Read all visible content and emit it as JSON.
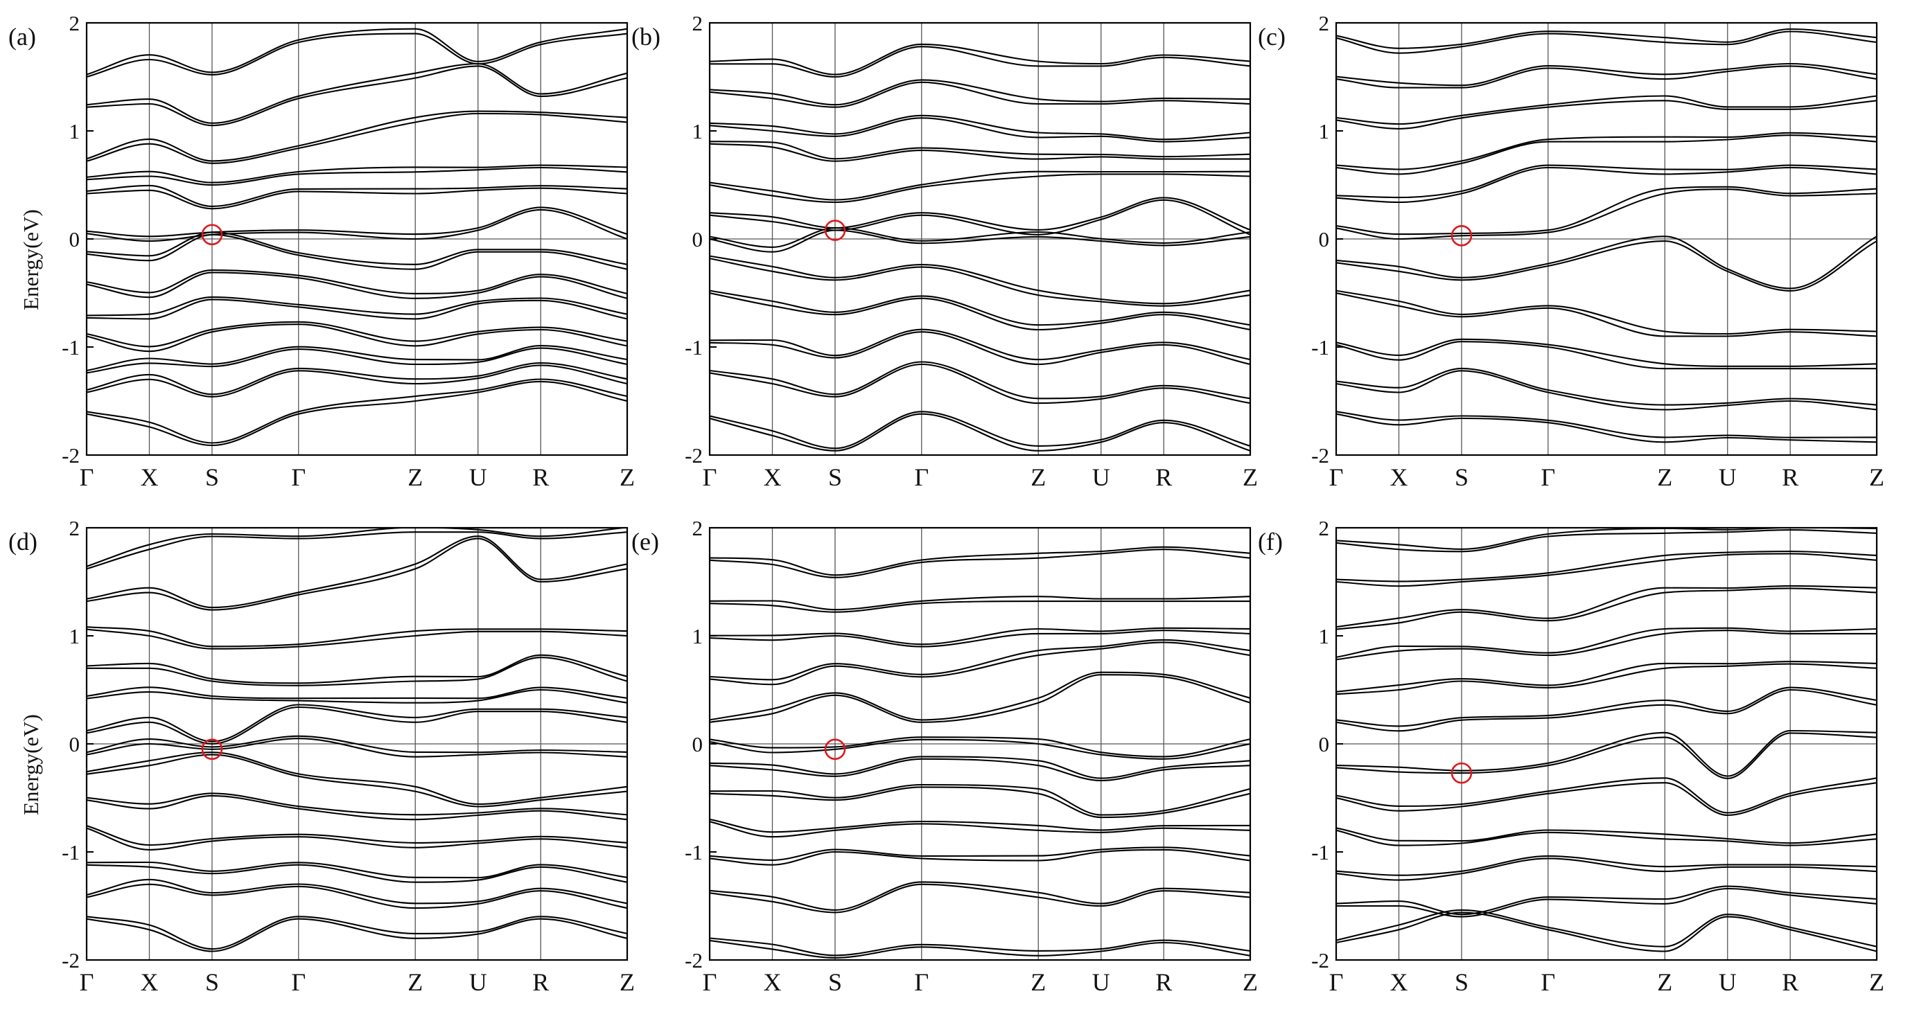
{
  "figure": {
    "line_color": "#000000",
    "marker_color": "#e0161b"
  },
  "chart_data": [
    {
      "type": "line",
      "panel_label": "(a)",
      "ylabel": "Energy(eV)",
      "ylim": [
        -2,
        2
      ],
      "y_ticks": [
        "-2",
        "-1",
        "0",
        "1",
        "2"
      ],
      "k_path": [
        "Γ",
        "X",
        "S",
        "Γ",
        "Z",
        "U",
        "R",
        "Z"
      ],
      "k_positions": [
        0,
        0.116,
        0.232,
        0.392,
        0.608,
        0.724,
        0.84,
        1.0
      ],
      "fermi_level": 0,
      "marked_point": {
        "k": "S",
        "x": 0.232,
        "energy": 0.04
      },
      "band_energies_at_k": [
        [
          -1.62,
          -1.74,
          -1.91,
          -1.62,
          -1.5,
          -1.42,
          -1.32,
          -1.5
        ],
        [
          -1.42,
          -1.3,
          -1.46,
          -1.22,
          -1.34,
          -1.29,
          -1.17,
          -1.34
        ],
        [
          -1.24,
          -1.15,
          -1.18,
          -1.02,
          -1.16,
          -1.14,
          -1.01,
          -1.16
        ],
        [
          -0.9,
          -1.04,
          -0.86,
          -0.79,
          -0.99,
          -0.88,
          -0.84,
          -0.99
        ],
        [
          -0.73,
          -0.74,
          -0.56,
          -0.63,
          -0.74,
          -0.6,
          -0.57,
          -0.74
        ],
        [
          -0.42,
          -0.54,
          -0.31,
          -0.36,
          -0.55,
          -0.5,
          -0.35,
          -0.55
        ],
        [
          -0.14,
          -0.2,
          0.04,
          -0.15,
          -0.28,
          -0.12,
          -0.12,
          -0.28
        ],
        [
          0.05,
          -0.02,
          0.04,
          0.06,
          0.0,
          0.08,
          0.27,
          0.0
        ],
        [
          0.42,
          0.45,
          0.28,
          0.44,
          0.42,
          0.45,
          0.47,
          0.42
        ],
        [
          0.55,
          0.58,
          0.5,
          0.6,
          0.62,
          0.64,
          0.66,
          0.62
        ],
        [
          0.72,
          0.88,
          0.7,
          0.84,
          1.08,
          1.16,
          1.15,
          1.08
        ],
        [
          1.22,
          1.25,
          1.05,
          1.3,
          1.49,
          1.6,
          1.32,
          1.49
        ],
        [
          1.5,
          1.66,
          1.52,
          1.82,
          1.9,
          1.62,
          1.8,
          1.9
        ]
      ]
    },
    {
      "type": "line",
      "panel_label": "(b)",
      "ylabel": "",
      "ylim": [
        -2,
        2
      ],
      "y_ticks": [
        "-2",
        "-1",
        "0",
        "1",
        "2"
      ],
      "k_path": [
        "Γ",
        "X",
        "S",
        "Γ",
        "Z",
        "U",
        "R",
        "Z"
      ],
      "k_positions": [
        0,
        0.116,
        0.232,
        0.392,
        0.608,
        0.724,
        0.84,
        1.0
      ],
      "fermi_level": 0,
      "marked_point": {
        "k": "S",
        "x": 0.232,
        "energy": 0.08
      },
      "band_energies_at_k": [
        [
          -1.66,
          -1.82,
          -1.96,
          -1.62,
          -1.96,
          -1.88,
          -1.7,
          -1.96
        ],
        [
          -1.24,
          -1.34,
          -1.46,
          -1.16,
          -1.52,
          -1.48,
          -1.38,
          -1.52
        ],
        [
          -0.96,
          -0.98,
          -1.1,
          -0.86,
          -1.16,
          -1.05,
          -0.98,
          -1.16
        ],
        [
          -0.5,
          -0.62,
          -0.7,
          -0.55,
          -0.84,
          -0.78,
          -0.7,
          -0.84
        ],
        [
          -0.18,
          -0.3,
          -0.38,
          -0.26,
          -0.52,
          -0.58,
          -0.62,
          -0.52
        ],
        [
          0.0,
          -0.12,
          0.08,
          -0.04,
          0.02,
          -0.02,
          -0.06,
          0.02
        ],
        [
          0.22,
          0.16,
          0.08,
          0.22,
          0.04,
          0.18,
          0.36,
          0.04
        ],
        [
          0.5,
          0.4,
          0.34,
          0.48,
          0.58,
          0.6,
          0.6,
          0.58
        ],
        [
          0.88,
          0.85,
          0.72,
          0.82,
          0.74,
          0.76,
          0.74,
          0.74
        ],
        [
          1.05,
          1.0,
          0.95,
          1.12,
          0.94,
          0.95,
          0.9,
          0.94
        ],
        [
          1.36,
          1.3,
          1.22,
          1.45,
          1.25,
          1.25,
          1.28,
          1.25
        ],
        [
          1.62,
          1.62,
          1.5,
          1.78,
          1.6,
          1.6,
          1.68,
          1.6
        ]
      ]
    },
    {
      "type": "line",
      "panel_label": "(c)",
      "ylabel": "",
      "ylim": [
        -2,
        2
      ],
      "y_ticks": [
        "-2",
        "-1",
        "0",
        "1",
        "2"
      ],
      "k_path": [
        "Γ",
        "X",
        "S",
        "Γ",
        "Z",
        "U",
        "R",
        "Z"
      ],
      "k_positions": [
        0,
        0.116,
        0.232,
        0.392,
        0.608,
        0.724,
        0.84,
        1.0
      ],
      "fermi_level": 0,
      "marked_point": {
        "k": "S",
        "x": 0.232,
        "energy": 0.03
      },
      "band_energies_at_k": [
        [
          -1.62,
          -1.72,
          -1.66,
          -1.7,
          -1.88,
          -1.84,
          -1.86,
          -1.88
        ],
        [
          -1.34,
          -1.42,
          -1.22,
          -1.42,
          -1.58,
          -1.54,
          -1.5,
          -1.58
        ],
        [
          -0.98,
          -1.12,
          -0.95,
          -1.0,
          -1.2,
          -1.2,
          -1.2,
          -1.2
        ],
        [
          -0.5,
          -0.62,
          -0.72,
          -0.64,
          -0.9,
          -0.9,
          -0.86,
          -0.9
        ],
        [
          -0.22,
          -0.3,
          -0.38,
          -0.25,
          -0.02,
          -0.3,
          -0.48,
          -0.02
        ],
        [
          0.1,
          0.0,
          0.03,
          0.06,
          0.42,
          0.46,
          0.4,
          0.42
        ],
        [
          0.38,
          0.34,
          0.42,
          0.66,
          0.6,
          0.62,
          0.66,
          0.6
        ],
        [
          0.66,
          0.6,
          0.7,
          0.9,
          0.9,
          0.92,
          0.96,
          0.9
        ],
        [
          1.1,
          1.02,
          1.12,
          1.22,
          1.28,
          1.2,
          1.2,
          1.28
        ],
        [
          1.48,
          1.4,
          1.4,
          1.58,
          1.48,
          1.55,
          1.6,
          1.48
        ],
        [
          1.86,
          1.72,
          1.78,
          1.9,
          1.82,
          1.8,
          1.92,
          1.82
        ]
      ]
    },
    {
      "type": "line",
      "panel_label": "(d)",
      "ylabel": "Energy(eV)",
      "ylim": [
        -2,
        2
      ],
      "y_ticks": [
        "-2",
        "-1",
        "0",
        "1",
        "2"
      ],
      "k_path": [
        "Γ",
        "X",
        "S",
        "Γ",
        "Z",
        "U",
        "R",
        "Z"
      ],
      "k_positions": [
        0,
        0.116,
        0.232,
        0.392,
        0.608,
        0.724,
        0.84,
        1.0
      ],
      "fermi_level": 0,
      "marked_point": {
        "k": "S",
        "x": 0.232,
        "energy": -0.05
      },
      "band_energies_at_k": [
        [
          -1.62,
          -1.72,
          -1.92,
          -1.62,
          -1.8,
          -1.76,
          -1.62,
          -1.8
        ],
        [
          -1.42,
          -1.3,
          -1.4,
          -1.32,
          -1.52,
          -1.48,
          -1.36,
          -1.52
        ],
        [
          -1.12,
          -1.14,
          -1.2,
          -1.12,
          -1.28,
          -1.26,
          -1.14,
          -1.28
        ],
        [
          -0.78,
          -0.98,
          -0.9,
          -0.86,
          -0.96,
          -0.92,
          -0.88,
          -0.96
        ],
        [
          -0.52,
          -0.6,
          -0.48,
          -0.6,
          -0.7,
          -0.66,
          -0.62,
          -0.7
        ],
        [
          -0.28,
          -0.2,
          -0.1,
          -0.3,
          -0.44,
          -0.58,
          -0.52,
          -0.44
        ],
        [
          -0.1,
          0.0,
          -0.05,
          0.05,
          -0.12,
          -0.1,
          -0.08,
          -0.12
        ],
        [
          0.1,
          0.2,
          0.0,
          0.34,
          0.2,
          0.3,
          0.3,
          0.2
        ],
        [
          0.42,
          0.48,
          0.42,
          0.4,
          0.38,
          0.4,
          0.5,
          0.38
        ],
        [
          0.7,
          0.7,
          0.58,
          0.54,
          0.58,
          0.6,
          0.8,
          0.58
        ],
        [
          1.06,
          1.0,
          0.88,
          0.9,
          1.0,
          1.04,
          1.04,
          1.0
        ],
        [
          1.32,
          1.4,
          1.24,
          1.38,
          1.62,
          1.9,
          1.5,
          1.62
        ],
        [
          1.62,
          1.8,
          1.92,
          1.9,
          1.96,
          1.96,
          1.9,
          1.96
        ]
      ]
    },
    {
      "type": "line",
      "panel_label": "(e)",
      "ylabel": "",
      "ylim": [
        -2,
        2
      ],
      "y_ticks": [
        "-2",
        "-1",
        "0",
        "1",
        "2"
      ],
      "k_path": [
        "Γ",
        "X",
        "S",
        "Γ",
        "Z",
        "U",
        "R",
        "Z"
      ],
      "k_positions": [
        0,
        0.116,
        0.232,
        0.392,
        0.608,
        0.724,
        0.84,
        1.0
      ],
      "fermi_level": 0,
      "marked_point": {
        "k": "S",
        "x": 0.232,
        "energy": -0.05
      },
      "band_energies_at_k": [
        [
          -1.82,
          -1.9,
          -1.98,
          -1.88,
          -1.96,
          -1.92,
          -1.84,
          -1.96
        ],
        [
          -1.38,
          -1.46,
          -1.56,
          -1.3,
          -1.42,
          -1.5,
          -1.36,
          -1.42
        ],
        [
          -1.06,
          -1.12,
          -1.0,
          -1.06,
          -1.08,
          -1.0,
          -0.98,
          -1.08
        ],
        [
          -0.72,
          -0.86,
          -0.8,
          -0.74,
          -0.8,
          -0.82,
          -0.78,
          -0.8
        ],
        [
          -0.46,
          -0.48,
          -0.52,
          -0.4,
          -0.46,
          -0.68,
          -0.64,
          -0.46
        ],
        [
          -0.2,
          -0.24,
          -0.3,
          -0.14,
          -0.2,
          -0.34,
          -0.24,
          -0.2
        ],
        [
          0.02,
          -0.08,
          -0.05,
          0.04,
          0.0,
          -0.1,
          -0.14,
          0.0
        ],
        [
          0.2,
          0.28,
          0.45,
          0.2,
          0.38,
          0.64,
          0.62,
          0.38
        ],
        [
          0.6,
          0.55,
          0.72,
          0.62,
          0.82,
          0.88,
          0.94,
          0.82
        ],
        [
          0.98,
          0.96,
          1.0,
          0.9,
          1.02,
          1.02,
          1.05,
          1.02
        ],
        [
          1.3,
          1.28,
          1.22,
          1.3,
          1.32,
          1.32,
          1.32,
          1.32
        ],
        [
          1.7,
          1.66,
          1.54,
          1.68,
          1.72,
          1.76,
          1.8,
          1.72
        ]
      ]
    },
    {
      "type": "line",
      "panel_label": "(f)",
      "ylabel": "",
      "ylim": [
        -2,
        2
      ],
      "y_ticks": [
        "-2",
        "-1",
        "0",
        "1",
        "2"
      ],
      "k_path": [
        "Γ",
        "X",
        "S",
        "Γ",
        "Z",
        "U",
        "R",
        "Z"
      ],
      "k_positions": [
        0,
        0.116,
        0.232,
        0.392,
        0.608,
        0.724,
        0.84,
        1.0
      ],
      "fermi_level": 0,
      "marked_point": {
        "k": "S",
        "x": 0.232,
        "energy": -0.27
      },
      "band_energies_at_k": [
        [
          -1.84,
          -1.72,
          -1.56,
          -1.72,
          -1.92,
          -1.6,
          -1.72,
          -1.92
        ],
        [
          -1.5,
          -1.5,
          -1.6,
          -1.44,
          -1.48,
          -1.34,
          -1.4,
          -1.48
        ],
        [
          -1.2,
          -1.26,
          -1.2,
          -1.06,
          -1.18,
          -1.14,
          -1.14,
          -1.18
        ],
        [
          -0.8,
          -0.94,
          -0.92,
          -0.82,
          -0.88,
          -0.9,
          -0.94,
          -0.88
        ],
        [
          -0.5,
          -0.62,
          -0.58,
          -0.46,
          -0.36,
          -0.66,
          -0.48,
          -0.36
        ],
        [
          -0.22,
          -0.26,
          -0.27,
          -0.2,
          0.06,
          -0.32,
          0.1,
          0.06
        ],
        [
          0.2,
          0.12,
          0.22,
          0.24,
          0.36,
          0.28,
          0.5,
          0.36
        ],
        [
          0.46,
          0.5,
          0.58,
          0.52,
          0.7,
          0.72,
          0.74,
          0.7
        ],
        [
          0.78,
          0.86,
          0.88,
          0.82,
          1.02,
          1.05,
          1.02,
          1.02
        ],
        [
          1.06,
          1.12,
          1.22,
          1.14,
          1.4,
          1.42,
          1.44,
          1.4
        ],
        [
          1.5,
          1.46,
          1.5,
          1.56,
          1.7,
          1.75,
          1.76,
          1.7
        ],
        [
          1.86,
          1.8,
          1.78,
          1.92,
          1.95,
          1.96,
          1.98,
          1.95
        ]
      ]
    }
  ]
}
